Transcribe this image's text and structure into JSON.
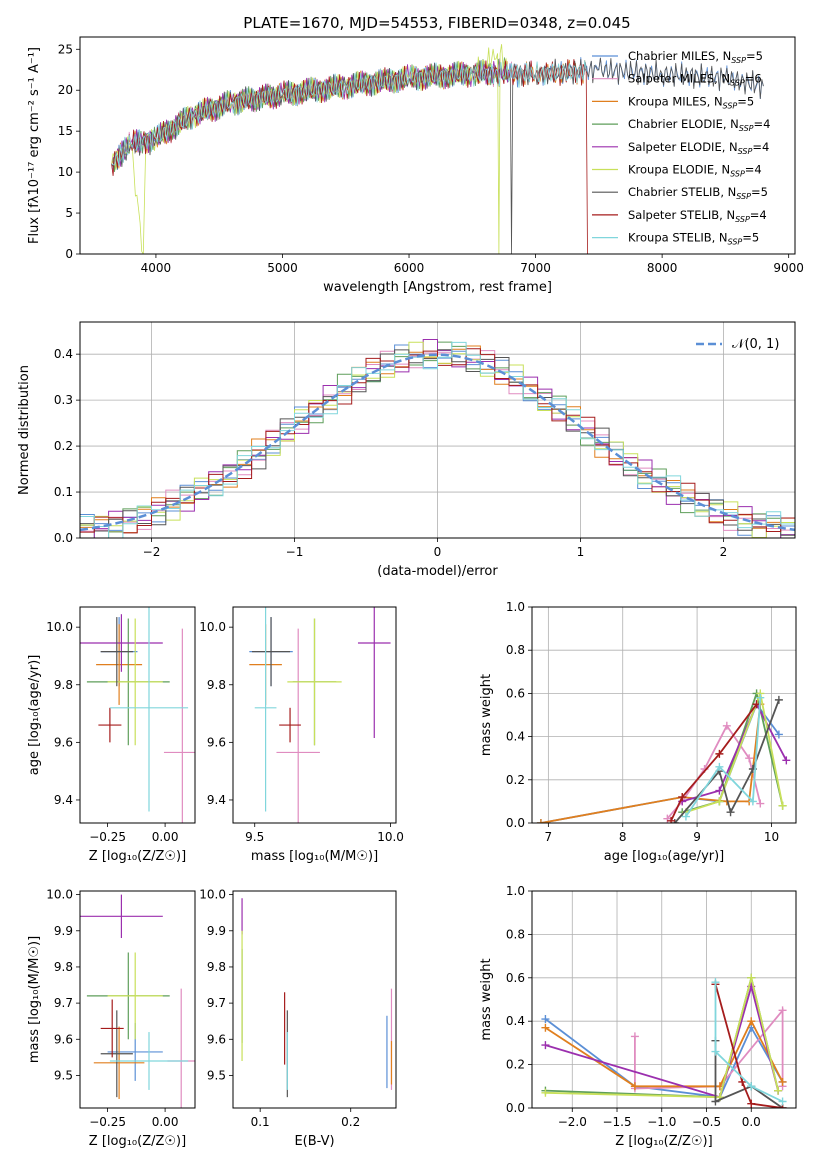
{
  "figure": {
    "title": "PLATE=1670, MJD=54553, FIBERID=0348, z=0.045"
  },
  "colors": {
    "series": [
      "#5b8fd6",
      "#e08cc0",
      "#e07f1e",
      "#5e9e5a",
      "#9b2fae",
      "#c8e05a",
      "#555555",
      "#a51c1c",
      "#80d6dc"
    ]
  },
  "chart_data": [
    {
      "type": "line",
      "title": "PLATE=1670, MJD=54553, FIBERID=0348, z=0.045",
      "xlabel": "wavelength [Angstrom, rest frame]",
      "ylabel": "Flux [fλ10⁻¹⁷ erg cm⁻² s⁻¹ A⁻¹]",
      "xlim": [
        3400,
        9050
      ],
      "ylim": [
        0,
        26.5
      ],
      "xticks": [
        4000,
        5000,
        6000,
        7000,
        8000,
        9000
      ],
      "yticks": [
        0,
        5,
        10,
        15,
        20,
        25
      ],
      "legend_position": "right",
      "series": [
        {
          "name": "Chabrier MILES, N_SSP=5",
          "x": [
            3650,
            3800,
            4000,
            4300,
            4600,
            5000,
            5500,
            6000,
            6500,
            7000,
            7500,
            8000,
            8500,
            8800
          ],
          "y": [
            11.0,
            13.5,
            14.2,
            17.0,
            18.5,
            19.5,
            20.5,
            21.5,
            22.0,
            22.0,
            22.5,
            22.0,
            21.5,
            20.5
          ]
        },
        {
          "name": "Salpeter MILES, N_SSP=6",
          "x": [
            3650,
            3800,
            4000,
            4300,
            4600,
            5000,
            5500,
            6000,
            6500,
            7000
          ],
          "y": [
            11.0,
            13.5,
            14.0,
            17.0,
            18.5,
            19.5,
            20.5,
            21.5,
            22.0,
            22.0
          ]
        },
        {
          "name": "Kroupa MILES, N_SSP=5",
          "x": [
            3650,
            3800,
            4000,
            4300,
            4600,
            5000,
            5500,
            6000,
            6500,
            7000,
            7400
          ],
          "y": [
            11.0,
            13.5,
            14.0,
            17.0,
            18.5,
            19.5,
            20.5,
            21.5,
            22.0,
            22.0,
            22.3
          ]
        },
        {
          "name": "Chabrier ELODIE, N_SSP=4",
          "x": [
            3650,
            3800,
            4000,
            4300,
            4600,
            5000,
            5500,
            6000,
            6500,
            6790
          ],
          "y": [
            11.0,
            13.5,
            14.2,
            17.0,
            18.5,
            19.5,
            20.5,
            21.5,
            22.0,
            22.5
          ]
        },
        {
          "name": "Salpeter ELODIE, N_SSP=4",
          "x": [
            3650,
            3800,
            4000,
            4300,
            4600,
            5000,
            5500,
            6000,
            6500,
            6790
          ],
          "y": [
            11.0,
            13.5,
            14.2,
            17.0,
            18.5,
            19.5,
            20.5,
            21.5,
            22.0,
            22.5
          ]
        },
        {
          "name": "Kroupa ELODIE, N_SSP=4",
          "x": [
            3650,
            3800,
            3900,
            3920,
            4000,
            4300,
            4600,
            5000,
            5500,
            6000,
            6500,
            6700,
            6710,
            6720,
            6790
          ],
          "y": [
            11.0,
            13.5,
            0.0,
            13.5,
            14.2,
            17.0,
            18.5,
            19.5,
            20.5,
            21.5,
            22.0,
            24.5,
            0.0,
            24.5,
            22.5
          ]
        },
        {
          "name": "Chabrier STELIB, N_SSP=5",
          "x": [
            3650,
            3800,
            4000,
            4300,
            4600,
            5000,
            5500,
            6000,
            6500,
            6800,
            6810,
            6820,
            7000,
            7500,
            8000,
            8500,
            8800
          ],
          "y": [
            11.0,
            13.0,
            14.0,
            17.0,
            18.5,
            19.5,
            20.5,
            21.5,
            22.0,
            22.0,
            0.0,
            22.0,
            22.0,
            22.5,
            22.0,
            21.5,
            20.5
          ]
        },
        {
          "name": "Salpeter STELIB, N_SSP=4",
          "x": [
            3650,
            3800,
            4000,
            4300,
            4600,
            5000,
            5500,
            6000,
            6500,
            7000,
            7400,
            7410
          ],
          "y": [
            11.0,
            13.5,
            14.0,
            17.0,
            18.5,
            19.5,
            20.5,
            21.5,
            22.0,
            22.0,
            22.3,
            0.0
          ]
        },
        {
          "name": "Kroupa STELIB, N_SSP=5",
          "x": [
            3650,
            3800,
            4000,
            4300,
            4600,
            5000,
            5500,
            6000,
            6500,
            7000,
            7400
          ],
          "y": [
            11.0,
            13.5,
            14.2,
            17.0,
            18.5,
            19.5,
            20.5,
            21.5,
            22.0,
            22.0,
            22.3
          ]
        }
      ]
    },
    {
      "type": "line",
      "xlabel": "(data-model)/error",
      "ylabel": "Normed distribution",
      "xlim": [
        -2.5,
        2.5
      ],
      "ylim": [
        0,
        0.47
      ],
      "xticks": [
        -2,
        -1,
        0,
        1,
        2
      ],
      "yticks": [
        0.0,
        0.1,
        0.2,
        0.3,
        0.4
      ],
      "legend": [
        "𝒩(0, 1)"
      ],
      "legend_position": "top-right",
      "series": [
        {
          "name": "𝒩(0, 1)",
          "mean": 0,
          "sigma": 1
        }
      ]
    },
    {
      "type": "scatter",
      "xlabel": "Z [log₁₀(Z/Z☉)]",
      "ylabel": "age  [log₁₀(age/yr)]",
      "xlim": [
        -0.37,
        0.13
      ],
      "ylim": [
        9.32,
        10.07
      ],
      "xticks": [
        -0.25,
        0.0
      ],
      "yticks": [
        9.4,
        9.6,
        9.8,
        10.0
      ],
      "points": [
        {
          "x": -0.2,
          "y": 9.915,
          "xerr": 0.08,
          "yerr": 0.12
        },
        {
          "x": 0.075,
          "y": 9.565,
          "xerr": 0.08,
          "yerr": 0.43
        },
        {
          "x": -0.2,
          "y": 9.87,
          "xerr": 0.1,
          "yerr": 0.14
        },
        {
          "x": -0.16,
          "y": 9.81,
          "xerr": 0.18,
          "yerr": 0.22
        },
        {
          "x": -0.19,
          "y": 9.945,
          "xerr": 0.18,
          "yerr": 0.1
        },
        {
          "x": -0.13,
          "y": 9.81,
          "xerr": 0.12,
          "yerr": 0.22
        },
        {
          "x": -0.21,
          "y": 9.915,
          "xerr": 0.07,
          "yerr": 0.12
        },
        {
          "x": -0.24,
          "y": 9.66,
          "xerr": 0.05,
          "yerr": 0.06
        },
        {
          "x": -0.07,
          "y": 9.72,
          "xerr": 0.17,
          "yerr": 0.36
        }
      ]
    },
    {
      "type": "scatter",
      "xlabel": "mass [log₁₀(M/M☉)]",
      "ylabel": "",
      "xlim": [
        9.42,
        10.02
      ],
      "ylim": [
        9.32,
        10.07
      ],
      "xticks": [
        9.5,
        10.0
      ],
      "yticks": [
        9.4,
        9.6,
        9.8,
        10.0
      ],
      "points": [
        {
          "x": 9.56,
          "y": 9.915,
          "xerr": 0.08,
          "yerr": 0.12
        },
        {
          "x": 9.66,
          "y": 9.565,
          "xerr": 0.08,
          "yerr": 0.43
        },
        {
          "x": 9.54,
          "y": 9.87,
          "xerr": 0.06,
          "yerr": 0.14
        },
        {
          "x": 9.72,
          "y": 9.81,
          "xerr": 0.08,
          "yerr": 0.22
        },
        {
          "x": 9.94,
          "y": 9.945,
          "xerr": 0.06,
          "yerr": 0.33
        },
        {
          "x": 9.72,
          "y": 9.81,
          "xerr": 0.1,
          "yerr": 0.22
        },
        {
          "x": 9.56,
          "y": 9.915,
          "xerr": 0.07,
          "yerr": 0.12
        },
        {
          "x": 9.63,
          "y": 9.66,
          "xerr": 0.04,
          "yerr": 0.06
        },
        {
          "x": 9.54,
          "y": 9.72,
          "xerr": 0.04,
          "yerr": 0.36
        }
      ]
    },
    {
      "type": "line",
      "xlabel": "age  [log₁₀(age/yr)]",
      "ylabel": "mass weight",
      "xlim": [
        6.78,
        10.33
      ],
      "ylim": [
        0,
        1.0
      ],
      "xticks": [
        7,
        8,
        9,
        10
      ],
      "yticks": [
        0.0,
        0.2,
        0.4,
        0.6,
        0.8,
        1.0
      ],
      "series": [
        {
          "name": "Chabrier MILES, N_SSP=5",
          "x": [
            6.9,
            8.8,
            9.3,
            9.8,
            10.1
          ],
          "y": [
            0.0,
            0.12,
            0.1,
            0.55,
            0.41
          ]
        },
        {
          "name": "Salpeter MILES, N_SSP=6",
          "x": [
            8.6,
            8.8,
            9.1,
            9.4,
            9.7,
            9.85
          ],
          "y": [
            0.02,
            0.1,
            0.25,
            0.45,
            0.3,
            0.09
          ]
        },
        {
          "name": "Kroupa MILES, N_SSP=5",
          "x": [
            6.9,
            8.8,
            9.4,
            9.7,
            9.85
          ],
          "y": [
            0.0,
            0.12,
            0.1,
            0.1,
            0.55
          ]
        },
        {
          "name": "Chabrier ELODIE, N_SSP=4",
          "x": [
            8.8,
            9.3,
            9.8,
            10.15
          ],
          "y": [
            0.05,
            0.1,
            0.6,
            0.08
          ]
        },
        {
          "name": "Salpeter ELODIE, N_SSP=4",
          "x": [
            8.8,
            9.3,
            9.8,
            10.2
          ],
          "y": [
            0.1,
            0.15,
            0.55,
            0.29
          ]
        },
        {
          "name": "Kroupa ELODIE, N_SSP=4",
          "x": [
            8.85,
            9.3,
            9.85,
            10.15
          ],
          "y": [
            0.05,
            0.1,
            0.6,
            0.08
          ]
        },
        {
          "name": "Chabrier STELIB, N_SSP=5",
          "x": [
            8.7,
            9.3,
            9.45,
            9.75,
            10.1
          ],
          "y": [
            0.0,
            0.24,
            0.05,
            0.25,
            0.57
          ]
        },
        {
          "name": "Salpeter STELIB, N_SSP=4",
          "x": [
            8.65,
            8.8,
            9.3,
            9.8
          ],
          "y": [
            0.01,
            0.12,
            0.32,
            0.55
          ]
        },
        {
          "name": "Kroupa STELIB, N_SSP=5",
          "x": [
            8.85,
            9.3,
            9.75,
            9.85
          ],
          "y": [
            0.03,
            0.26,
            0.1,
            0.58
          ]
        }
      ]
    },
    {
      "type": "scatter",
      "xlabel": "Z [log₁₀(Z/Z☉)]",
      "ylabel": "mass [log₁₀(M/M☉)]",
      "xlim": [
        -0.37,
        0.13
      ],
      "ylim": [
        9.41,
        10.01
      ],
      "xticks": [
        -0.25,
        0.0
      ],
      "yticks": [
        9.5,
        9.6,
        9.7,
        9.8,
        9.9,
        10.0
      ],
      "points": [
        {
          "x": -0.13,
          "y": 9.565,
          "xerr": 0.12,
          "yerr": 0.08
        },
        {
          "x": 0.07,
          "y": 9.54,
          "xerr": 0.06,
          "yerr": 0.2
        },
        {
          "x": -0.2,
          "y": 9.535,
          "xerr": 0.11,
          "yerr": 0.1
        },
        {
          "x": -0.16,
          "y": 9.72,
          "xerr": 0.18,
          "yerr": 0.12
        },
        {
          "x": -0.19,
          "y": 9.94,
          "xerr": 0.18,
          "yerr": 0.06
        },
        {
          "x": -0.13,
          "y": 9.72,
          "xerr": 0.12,
          "yerr": 0.12
        },
        {
          "x": -0.21,
          "y": 9.56,
          "xerr": 0.07,
          "yerr": 0.12
        },
        {
          "x": -0.23,
          "y": 9.63,
          "xerr": 0.05,
          "yerr": 0.08
        },
        {
          "x": -0.07,
          "y": 9.54,
          "xerr": 0.17,
          "yerr": 0.08
        }
      ]
    },
    {
      "type": "scatter",
      "xlabel": "E(B-V)",
      "ylabel": "",
      "xlim": [
        0.07,
        0.25
      ],
      "ylim": [
        9.41,
        10.01
      ],
      "xticks": [
        0.1,
        0.2
      ],
      "yticks": [
        9.5,
        9.6,
        9.7,
        9.8,
        9.9,
        10.0
      ],
      "points": [
        {
          "x": 0.24,
          "y": 9.565,
          "yerr": 0.1
        },
        {
          "x": 0.245,
          "y": 9.6,
          "yerr": 0.14
        },
        {
          "x": 0.245,
          "y": 9.535,
          "yerr": 0.06
        },
        {
          "x": 0.08,
          "y": 9.72,
          "yerr": 0.13
        },
        {
          "x": 0.08,
          "y": 9.94,
          "yerr": 0.05
        },
        {
          "x": 0.08,
          "y": 9.72,
          "yerr": 0.18
        },
        {
          "x": 0.13,
          "y": 9.56,
          "yerr": 0.12
        },
        {
          "x": 0.127,
          "y": 9.63,
          "yerr": 0.1
        },
        {
          "x": 0.13,
          "y": 9.54,
          "yerr": 0.08
        }
      ]
    },
    {
      "type": "line",
      "xlabel": "Z [log₁₀(Z/Z☉)]",
      "ylabel": "mass weight",
      "xlim": [
        -2.45,
        0.5
      ],
      "ylim": [
        0,
        1.0
      ],
      "xticks": [
        -2.0,
        -1.5,
        -1.0,
        -0.5,
        0.0
      ],
      "yticks": [
        0.0,
        0.2,
        0.4,
        0.6,
        0.8,
        1.0
      ],
      "series": [
        {
          "name": "Chabrier MILES, N_SSP=5",
          "x": [
            -2.3,
            -1.3,
            -0.35,
            0.0,
            0.35
          ],
          "y": [
            0.41,
            0.1,
            0.05,
            0.37,
            0.12
          ]
        },
        {
          "name": "Salpeter MILES, N_SSP=6",
          "x": [
            -1.3,
            -1.3,
            -0.35,
            0.35,
            0.35
          ],
          "y": [
            0.33,
            0.09,
            0.1,
            0.45,
            0.1
          ]
        },
        {
          "name": "Kroupa MILES, N_SSP=5",
          "x": [
            -2.3,
            -1.3,
            -0.35,
            0.0,
            0.35
          ],
          "y": [
            0.37,
            0.1,
            0.1,
            0.4,
            0.12
          ]
        },
        {
          "name": "Chabrier ELODIE, N_SSP=4",
          "x": [
            -2.3,
            -0.35,
            0.0,
            0.3
          ],
          "y": [
            0.08,
            0.05,
            0.6,
            0.08
          ]
        },
        {
          "name": "Salpeter ELODIE, N_SSP=4",
          "x": [
            -2.3,
            -0.35,
            0.0,
            0.3
          ],
          "y": [
            0.29,
            0.05,
            0.56,
            0.08
          ]
        },
        {
          "name": "Kroupa ELODIE, N_SSP=4",
          "x": [
            -2.3,
            -0.35,
            0.0,
            0.3
          ],
          "y": [
            0.07,
            0.05,
            0.6,
            0.08
          ]
        },
        {
          "name": "Chabrier STELIB, N_SSP=5",
          "x": [
            -0.4,
            -0.4,
            0.0,
            0.35
          ],
          "y": [
            0.31,
            0.03,
            0.1,
            0.0
          ]
        },
        {
          "name": "Salpeter STELIB, N_SSP=4",
          "x": [
            -0.4,
            -0.1,
            0.0,
            0.35
          ],
          "y": [
            0.57,
            0.12,
            0.02,
            0.0
          ]
        },
        {
          "name": "Kroupa STELIB, N_SSP=5",
          "x": [
            -0.4,
            -0.4,
            0.0,
            0.35
          ],
          "y": [
            0.58,
            0.26,
            0.1,
            0.03
          ]
        }
      ]
    }
  ]
}
